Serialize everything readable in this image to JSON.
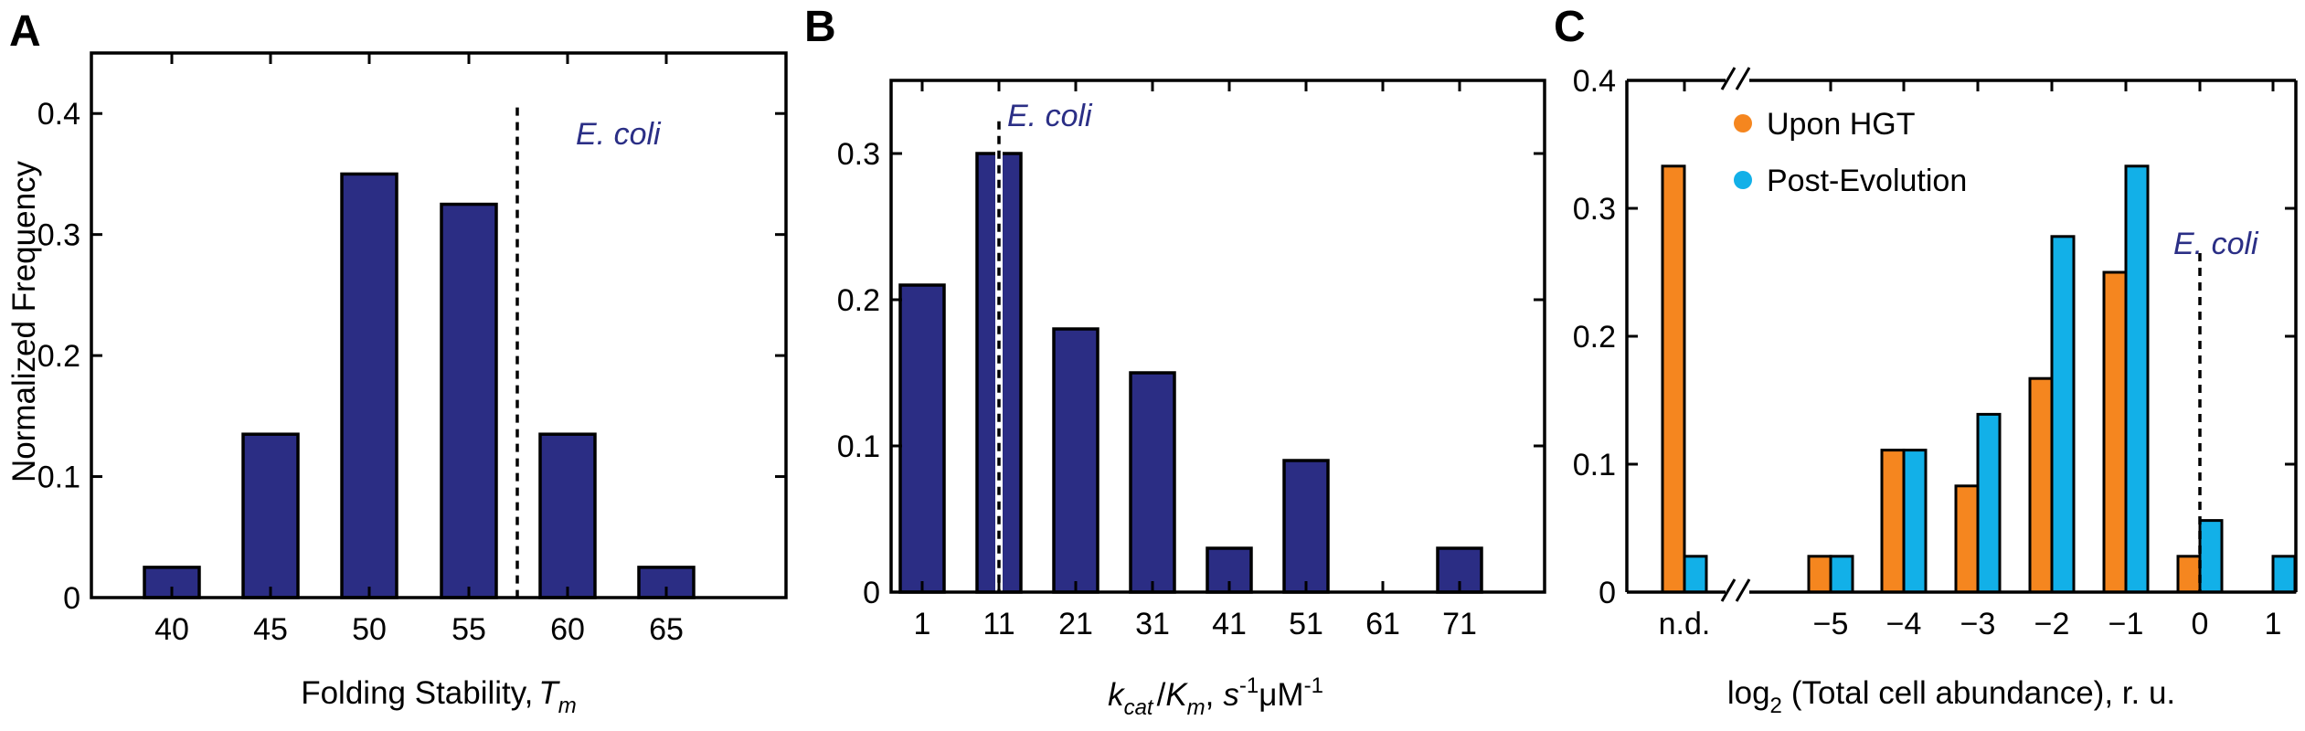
{
  "colors": {
    "bar_navy": "#2b2d84",
    "upon_hgt": "#f5861f",
    "post_evolution": "#12b0e8",
    "annotation": "#2b2f86",
    "axis": "#000000"
  },
  "panels": {
    "A": {
      "letter": "A",
      "xlabel": "Folding Stability,",
      "xlabel_sym": "T",
      "xlabel_sub": "m",
      "ylabel": "Normalized Frequency",
      "annotation": "E. coli"
    },
    "B": {
      "letter": "B",
      "xlabel_k": "k",
      "xlabel_cat": "cat",
      "xlabel_slash": "/",
      "xlabel_K": "K",
      "xlabel_m": "m",
      "xlabel_comma": ",",
      "xlabel_units1": "s",
      "xlabel_exp1": "-1",
      "xlabel_units2": "μM",
      "xlabel_exp2": "-1",
      "annotation": "E. coli"
    },
    "C": {
      "letter": "C",
      "xlabel_pre": "log",
      "xlabel_sub": "2",
      "xlabel_post": "(Total cell abundance), r. u.",
      "annotation": "E. coli"
    }
  },
  "chart_data": [
    {
      "panel": "A",
      "type": "bar",
      "categories": [
        "40",
        "45",
        "50",
        "55",
        "60",
        "65"
      ],
      "values": [
        0.025,
        0.135,
        0.35,
        0.325,
        0.135,
        0.025
      ],
      "ylim": [
        0,
        0.45
      ],
      "yticks": [
        "0",
        "0.1",
        "0.2",
        "0.3",
        "0.4"
      ],
      "xlabel": "Folding Stability, Tm",
      "ylabel": "Normalized Frequency",
      "reference_line": {
        "label": "E. coli",
        "x": 57.5
      },
      "grid": false
    },
    {
      "panel": "B",
      "type": "bar",
      "categories": [
        "1",
        "11",
        "21",
        "31",
        "41",
        "51",
        "61",
        "71"
      ],
      "values": [
        0.21,
        0.3,
        0.18,
        0.15,
        0.03,
        0.09,
        0.0,
        0.03
      ],
      "ylim": [
        0,
        0.35
      ],
      "yticks": [
        "0",
        "0.1",
        "0.2",
        "0.3"
      ],
      "xlabel": "kcat/Km, s-1μM-1",
      "reference_line": {
        "label": "E. coli",
        "x": 11
      },
      "grid": false
    },
    {
      "panel": "C",
      "type": "bar",
      "categories": [
        "n.d.",
        "−5",
        "−4",
        "−3",
        "−2",
        "−1",
        "0",
        "1"
      ],
      "series": [
        {
          "name": "Upon HGT",
          "values": [
            0.333,
            0.028,
            0.111,
            0.083,
            0.167,
            0.25,
            0.028,
            0.0
          ]
        },
        {
          "name": "Post-Evolution",
          "values": [
            0.028,
            0.028,
            0.111,
            0.139,
            0.278,
            0.333,
            0.056,
            0.028
          ]
        }
      ],
      "ylim": [
        0,
        0.4
      ],
      "yticks": [
        "0",
        "0.1",
        "0.2",
        "0.3",
        "0.4"
      ],
      "xlabel": "log2 (Total cell abundance), r. u.",
      "reference_line": {
        "label": "E. coli",
        "x": 0
      },
      "legend_placement": "top-left",
      "axis_break": "between n.d. and −5",
      "grid": false
    }
  ]
}
